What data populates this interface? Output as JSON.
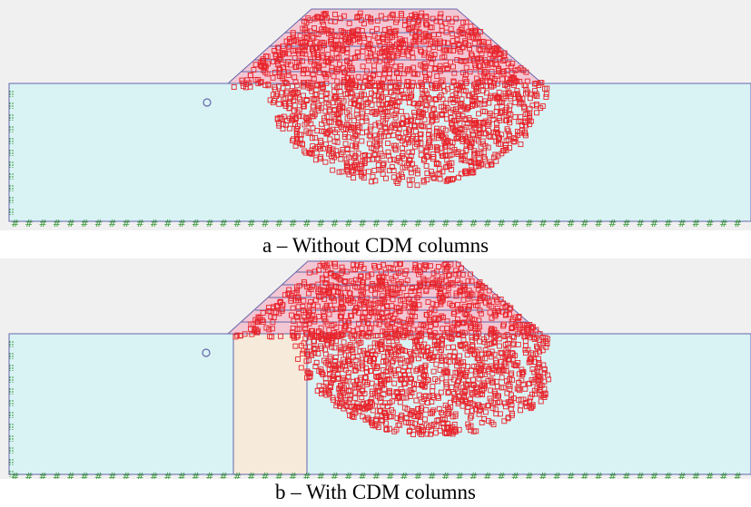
{
  "figure": {
    "panels": [
      {
        "id": "a",
        "caption": "a – Without CDM columns",
        "has_cdm_column": false
      },
      {
        "id": "b",
        "caption": "b – With CDM columns",
        "has_cdm_column": true
      }
    ],
    "colors": {
      "background": "#f0f0f0",
      "foundation_soil": "#d9f3f5",
      "embankment": "#f3c6d3",
      "cdm_column": "#f6eadb",
      "particle": "#e8242b",
      "outline": "#6666aa",
      "boundary_marks": "#3a9a3a"
    }
  }
}
